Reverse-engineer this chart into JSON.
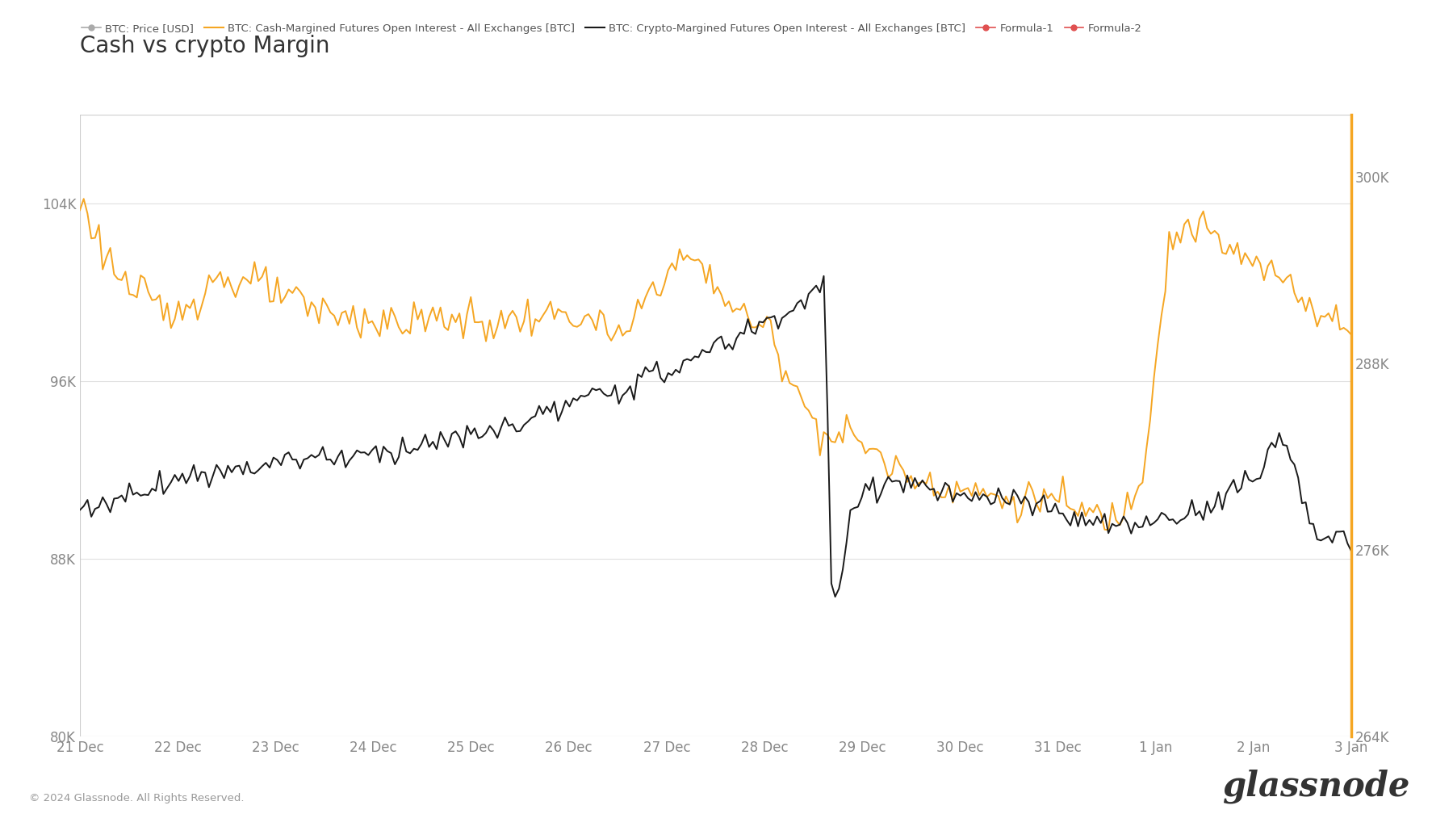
{
  "title": "Cash vs crypto Margin",
  "background_color": "#ffffff",
  "plot_bg_color": "#ffffff",
  "title_fontsize": 20,
  "title_color": "#333333",
  "left_ylim": [
    80000,
    108000
  ],
  "right_ylim": [
    264000,
    304000
  ],
  "left_yticks": [
    80000,
    88000,
    96000,
    104000
  ],
  "right_yticks": [
    264000,
    276000,
    288000,
    300000
  ],
  "left_ytick_labels": [
    "80K",
    "88K",
    "96K",
    "104K"
  ],
  "right_ytick_labels": [
    "264K",
    "276K",
    "288K",
    "300K"
  ],
  "grid_color": "#e0e0e0",
  "tick_color": "#888888",
  "orange_color": "#f5a623",
  "black_color": "#1a1a1a",
  "gray_color": "#aaaaaa",
  "red_color": "#e05050",
  "footer_text": "© 2024 Glassnode. All Rights Reserved.",
  "watermark_text": "glassnode",
  "x_tick_labels": [
    "21 Dec",
    "22 Dec",
    "23 Dec",
    "24 Dec",
    "25 Dec",
    "26 Dec",
    "27 Dec",
    "28 Dec",
    "29 Dec",
    "30 Dec",
    "31 Dec",
    "1 Jan",
    "2 Jan",
    "3 Jan"
  ],
  "legend_labels": [
    "BTC: Price [USD]",
    "BTC: Cash-Margined Futures Open Interest - All Exchanges [BTC]",
    "BTC: Crypto-Margined Futures Open Interest - All Exchanges [BTC]",
    "Formula-1",
    "Formula-2"
  ],
  "legend_colors": [
    "#aaaaaa",
    "#f5a623",
    "#1a1a1a",
    "#e05050",
    "#e05050"
  ],
  "legend_markers": [
    "o",
    null,
    null,
    "o",
    "o"
  ]
}
